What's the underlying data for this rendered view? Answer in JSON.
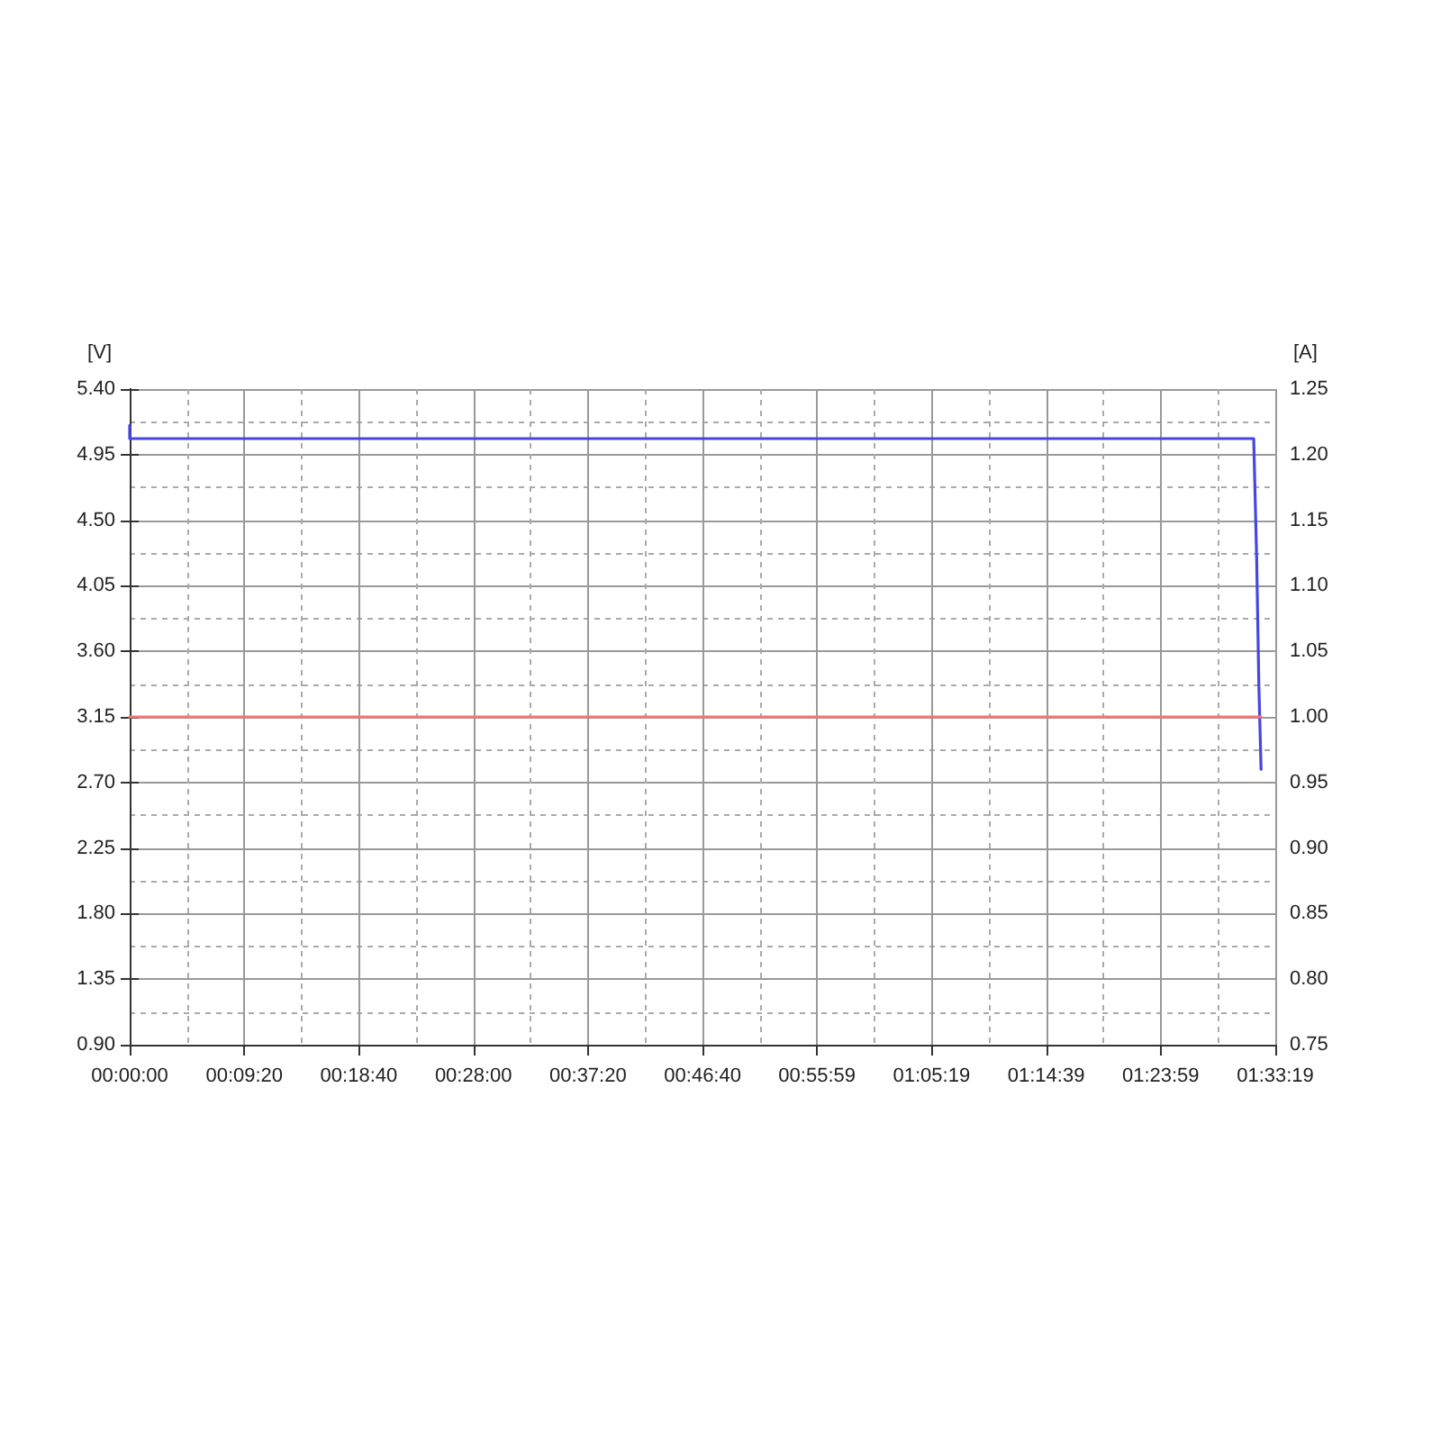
{
  "chart_data": {
    "type": "line",
    "ylabel": "[V]",
    "y2label": "[A]",
    "xlim": [
      0,
      1.5553
    ],
    "xticks": [
      {
        "value": 0,
        "label": "00:00:00"
      },
      {
        "value": 0.1556,
        "label": "00:09:20"
      },
      {
        "value": 0.3111,
        "label": "00:18:40"
      },
      {
        "value": 0.4667,
        "label": "00:28:00"
      },
      {
        "value": 0.6222,
        "label": "00:37:20"
      },
      {
        "value": 0.7778,
        "label": "00:46:40"
      },
      {
        "value": 0.9331,
        "label": "00:55:59"
      },
      {
        "value": 1.0886,
        "label": "01:05:19"
      },
      {
        "value": 1.2442,
        "label": "01:14:39"
      },
      {
        "value": 1.3997,
        "label": "01:23:59"
      },
      {
        "value": 1.5553,
        "label": "01:33:19"
      }
    ],
    "ylim": [
      0.9,
      5.4
    ],
    "yticks": [
      {
        "value": 0.9,
        "label": "0.90"
      },
      {
        "value": 1.35,
        "label": "1.35"
      },
      {
        "value": 1.8,
        "label": "1.80"
      },
      {
        "value": 2.25,
        "label": "2.25"
      },
      {
        "value": 2.7,
        "label": "2.70"
      },
      {
        "value": 3.15,
        "label": "3.15"
      },
      {
        "value": 3.6,
        "label": "3.60"
      },
      {
        "value": 4.05,
        "label": "4.05"
      },
      {
        "value": 4.5,
        "label": "4.50"
      },
      {
        "value": 4.95,
        "label": "4.95"
      },
      {
        "value": 5.4,
        "label": "5.40"
      }
    ],
    "y2lim": [
      0.75,
      1.25
    ],
    "y2ticks": [
      0.75,
      {
        "value": 0.8,
        "label": "0.80"
      },
      0.85,
      {
        "value": 0.9,
        "label": "0.90"
      },
      0.95,
      {
        "value": 1.0,
        "label": "1.00"
      },
      1.05,
      {
        "value": 1.1,
        "label": "1.10"
      },
      1.15,
      {
        "value": 1.2,
        "label": "1.20"
      },
      1.25
    ],
    "grid": true,
    "marker": "none",
    "line_style": "solid",
    "series": [
      {
        "color": "#4646e0",
        "x": [
          0,
          0,
          1.526,
          1.53,
          1.533,
          1.536
        ],
        "values": [
          5.15,
          5.06,
          5.06,
          4.24,
          3.37,
          2.79
        ]
      },
      {
        "color": "#f07878",
        "axis": "y2",
        "x": [
          0,
          1.536
        ],
        "values": [
          1.0,
          1.0
        ]
      }
    ]
  }
}
